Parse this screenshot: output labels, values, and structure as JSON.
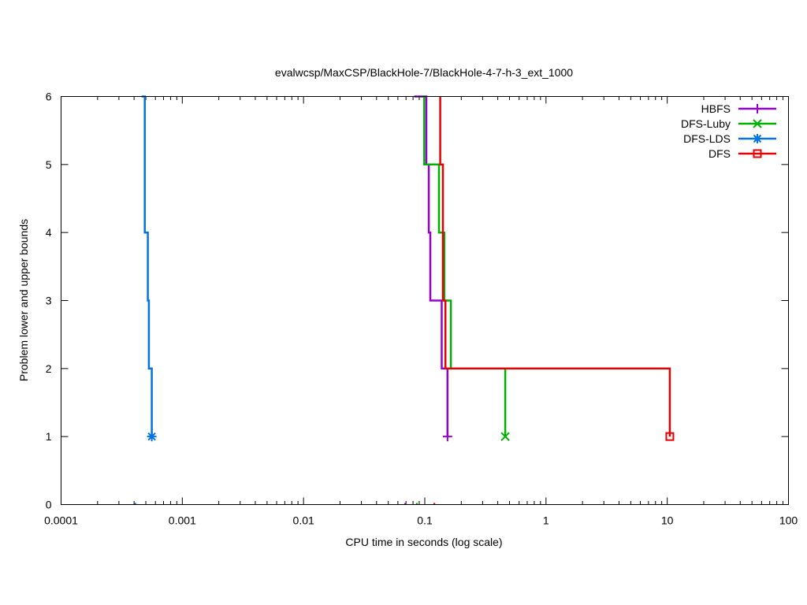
{
  "chart_data": {
    "type": "line",
    "title": "evalwcsp/MaxCSP/BlackHole-7/BlackHole-4-7-h-3_ext_1000",
    "xlabel": "CPU time in seconds (log scale)",
    "ylabel": "Problem lower and upper bounds",
    "x_scale": "log",
    "xlim": [
      0.0001,
      100
    ],
    "ylim": [
      0,
      6
    ],
    "x_ticks": [
      {
        "value": 0.0001,
        "label": "0.0001"
      },
      {
        "value": 0.001,
        "label": "0.001"
      },
      {
        "value": 0.01,
        "label": "0.01"
      },
      {
        "value": 0.1,
        "label": "0.1"
      },
      {
        "value": 1,
        "label": "1"
      },
      {
        "value": 10,
        "label": "10"
      },
      {
        "value": 100,
        "label": "100"
      }
    ],
    "y_ticks": [
      {
        "value": 0,
        "label": "0"
      },
      {
        "value": 1,
        "label": "1"
      },
      {
        "value": 2,
        "label": "2"
      },
      {
        "value": 3,
        "label": "3"
      },
      {
        "value": 4,
        "label": "4"
      },
      {
        "value": 5,
        "label": "5"
      },
      {
        "value": 6,
        "label": "6"
      }
    ],
    "grid": false,
    "legend_position": "top-right",
    "series": [
      {
        "name": "HBFS",
        "color": "#9400d3",
        "marker": "plus",
        "upper": [
          [
            0.082,
            6
          ],
          [
            0.103,
            6
          ],
          [
            0.103,
            5
          ],
          [
            0.108,
            5
          ],
          [
            0.108,
            4
          ],
          [
            0.111,
            4
          ],
          [
            0.111,
            3
          ],
          [
            0.138,
            3
          ],
          [
            0.138,
            2
          ],
          [
            0.154,
            2
          ],
          [
            0.154,
            1
          ]
        ],
        "lower_points": [
          [
            0.069,
            0
          ]
        ],
        "end_point": [
          0.154,
          1
        ]
      },
      {
        "name": "DFS-Luby",
        "color": "#00b000",
        "marker": "x",
        "upper": [
          [
            0.096,
            6
          ],
          [
            0.099,
            6
          ],
          [
            0.099,
            5
          ],
          [
            0.131,
            5
          ],
          [
            0.131,
            4
          ],
          [
            0.145,
            4
          ],
          [
            0.145,
            3
          ],
          [
            0.164,
            3
          ],
          [
            0.164,
            2
          ],
          [
            0.461,
            2
          ],
          [
            0.461,
            1
          ]
        ],
        "lower_points": [
          [
            0.086,
            0
          ]
        ],
        "end_point": [
          0.461,
          1
        ]
      },
      {
        "name": "DFS-LDS",
        "color": "#0072e6",
        "marker": "star",
        "upper": [
          [
            0.00046,
            6
          ],
          [
            0.00049,
            6
          ],
          [
            0.00049,
            4
          ],
          [
            0.00052,
            4
          ],
          [
            0.00052,
            3
          ],
          [
            0.00053,
            3
          ],
          [
            0.00053,
            2
          ],
          [
            0.00056,
            2
          ],
          [
            0.00056,
            1
          ]
        ],
        "lower_points": [
          [
            0.00041,
            0
          ]
        ],
        "end_point": [
          0.00056,
          1
        ]
      },
      {
        "name": "DFS",
        "color": "#e60000",
        "marker": "square",
        "upper": [
          [
            0.134,
            6
          ],
          [
            0.134,
            5
          ],
          [
            0.141,
            5
          ],
          [
            0.141,
            3
          ],
          [
            0.148,
            3
          ],
          [
            0.148,
            2
          ],
          [
            10.5,
            2
          ],
          [
            10.5,
            1
          ]
        ],
        "lower_points": [
          [
            0.12,
            0
          ]
        ],
        "end_point": [
          10.5,
          1
        ]
      }
    ]
  }
}
